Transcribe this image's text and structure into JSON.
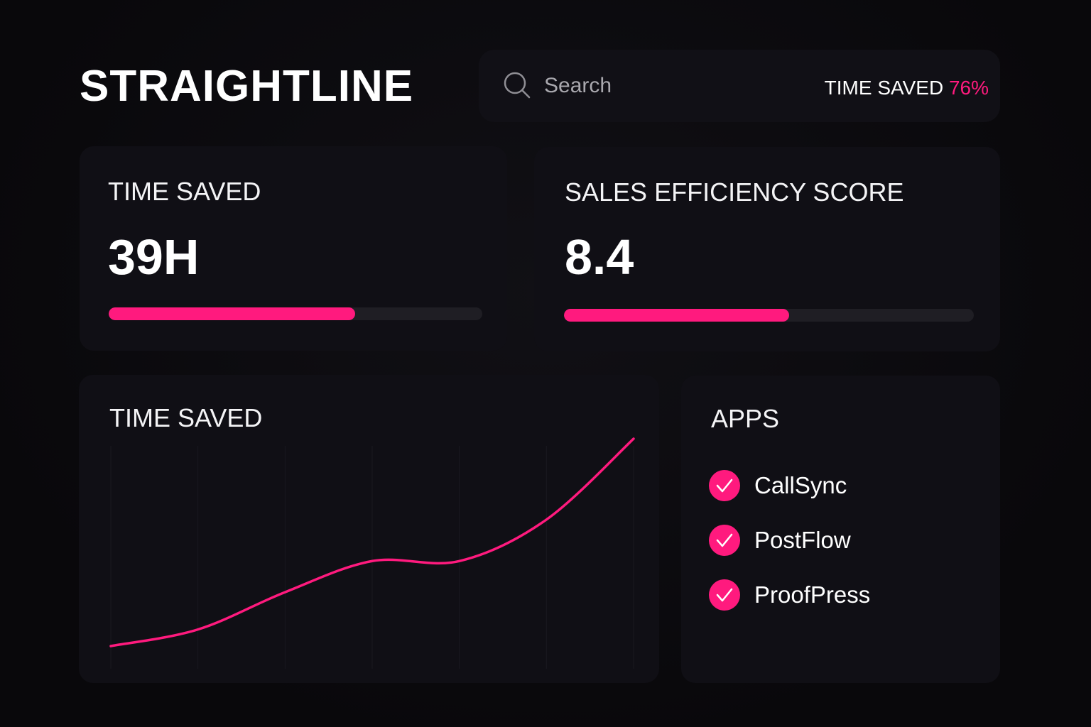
{
  "brand": {
    "name": "STRAIGHTLINE"
  },
  "search": {
    "placeholder": "Search"
  },
  "header": {
    "summary_label": "TIME SAVED",
    "summary_value": "76%"
  },
  "cards": {
    "time_saved": {
      "label": "TIME SAVED",
      "value": "39H",
      "progress": 0.66
    },
    "efficiency": {
      "label": "SALES EFFICIENCY SCORE",
      "value": "8.4",
      "progress": 0.55
    }
  },
  "chart_panel": {
    "title": "TIME SAVED"
  },
  "chart_data": {
    "type": "line",
    "title": "TIME SAVED",
    "xlabel": "",
    "ylabel": "",
    "grid": "vertical faint lines",
    "series": [
      {
        "values": [
          0.0,
          0.08,
          0.26,
          0.41,
          0.41,
          0.61,
          1.0
        ]
      }
    ],
    "color": "#ff1a7e"
  },
  "apps": {
    "title": "APPS",
    "items": [
      {
        "label": "CallSync"
      },
      {
        "label": "PostFlow"
      },
      {
        "label": "ProofPress"
      }
    ]
  },
  "colors": {
    "accent": "#ff1a7e",
    "background": "#0b0a0d",
    "card": "#100f15"
  },
  "icons": {
    "search": "search-icon",
    "check": "check-circle-icon"
  }
}
